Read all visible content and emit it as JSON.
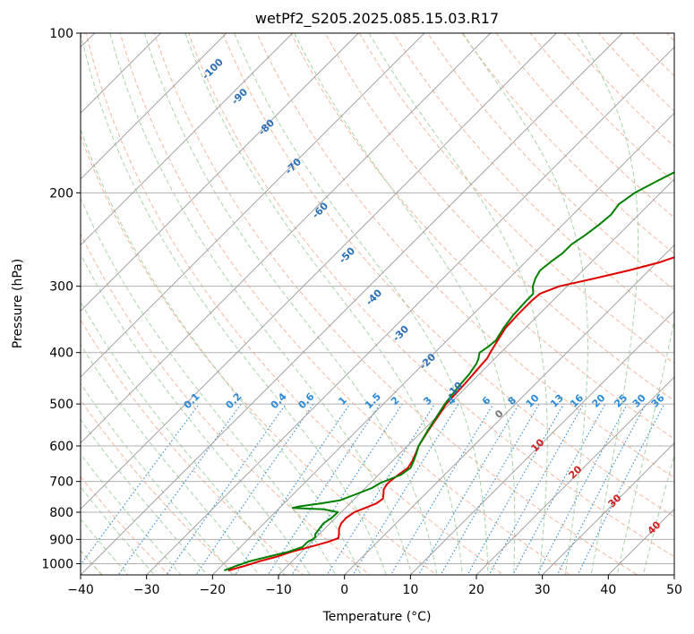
{
  "chart_data": {
    "type": "line",
    "title": "wetPf2_S205.2025.085.15.03.R17",
    "xlabel": "Temperature (°C)",
    "ylabel": "Pressure (hPa)",
    "xlim": [
      -40,
      50
    ],
    "ylim": [
      1050,
      100
    ],
    "y_scale": "log",
    "x_ticks": [
      "−40",
      "−30",
      "−20",
      "−10",
      "0",
      "10",
      "20",
      "30",
      "40",
      "50"
    ],
    "y_ticks": [
      "100",
      "200",
      "300",
      "400",
      "500",
      "600",
      "700",
      "800",
      "900",
      "1000"
    ],
    "grid": true,
    "colors": {
      "temperature": "#e00000",
      "dewpoint": "#008000",
      "dry_adiabat": "#f4a582",
      "moist_adiabat": "#8fca8f",
      "mixing_ratio": "#2a8ad8",
      "skew_isotherm": "#999999",
      "grid": "#b0b0b0",
      "iso_label_blue": "#2a6fb8",
      "iso_label_red": "#d02020",
      "zero_label": "#777777"
    },
    "series": [
      {
        "key": "temperature",
        "points": [
          [
            1030,
            -18.3
          ],
          [
            1010,
            -16.5
          ],
          [
            990,
            -15.0
          ],
          [
            970,
            -13.0
          ],
          [
            950,
            -11.5
          ],
          [
            930,
            -9.5
          ],
          [
            910,
            -7.5
          ],
          [
            895,
            -6.5
          ],
          [
            880,
            -7.0
          ],
          [
            860,
            -7.8
          ],
          [
            840,
            -8.3
          ],
          [
            820,
            -8.4
          ],
          [
            800,
            -8.0
          ],
          [
            785,
            -7.0
          ],
          [
            770,
            -6.0
          ],
          [
            755,
            -5.7
          ],
          [
            740,
            -6.3
          ],
          [
            725,
            -7.0
          ],
          [
            710,
            -7.3
          ],
          [
            700,
            -7.3
          ],
          [
            680,
            -7.0
          ],
          [
            660,
            -6.6
          ],
          [
            640,
            -7.0
          ],
          [
            620,
            -7.6
          ],
          [
            600,
            -8.3
          ],
          [
            560,
            -9.2
          ],
          [
            520,
            -10.0
          ],
          [
            500,
            -10.5
          ],
          [
            480,
            -10.6
          ],
          [
            460,
            -10.7
          ],
          [
            440,
            -10.9
          ],
          [
            420,
            -11.1
          ],
          [
            410,
            -11.2
          ],
          [
            400,
            -11.6
          ],
          [
            380,
            -12.3
          ],
          [
            360,
            -13.0
          ],
          [
            340,
            -13.2
          ],
          [
            320,
            -13.2
          ],
          [
            310,
            -13.0
          ],
          [
            300,
            -11.2
          ],
          [
            290,
            -7.0
          ],
          [
            280,
            -3.0
          ],
          [
            270,
            0.5
          ],
          [
            260,
            3.0
          ],
          [
            250,
            5.3
          ],
          [
            240,
            7.8
          ],
          [
            230,
            10.0
          ],
          [
            220,
            12.0
          ],
          [
            210,
            14.0
          ],
          [
            200,
            16.0
          ],
          [
            190,
            17.5
          ],
          [
            180,
            19.0
          ],
          [
            170,
            20.3
          ],
          [
            160,
            21.8
          ],
          [
            150,
            23.0
          ],
          [
            140,
            24.3
          ],
          [
            130,
            25.8
          ],
          [
            120,
            27.5
          ],
          [
            110,
            30.3
          ],
          [
            100,
            33.6
          ]
        ]
      },
      {
        "key": "dewpoint",
        "points": [
          [
            1030,
            -18.9
          ],
          [
            1010,
            -17.8
          ],
          [
            990,
            -16.5
          ],
          [
            970,
            -14.3
          ],
          [
            950,
            -12.0
          ],
          [
            930,
            -10.6
          ],
          [
            910,
            -10.6
          ],
          [
            900,
            -10.2
          ],
          [
            890,
            -10.2
          ],
          [
            880,
            -10.6
          ],
          [
            860,
            -10.8
          ],
          [
            840,
            -11.0
          ],
          [
            820,
            -10.6
          ],
          [
            800,
            -10.5
          ],
          [
            790,
            -13.0
          ],
          [
            785,
            -18.0
          ],
          [
            780,
            -17.2
          ],
          [
            770,
            -14.5
          ],
          [
            760,
            -12.0
          ],
          [
            740,
            -10.5
          ],
          [
            720,
            -9.0
          ],
          [
            705,
            -8.5
          ],
          [
            690,
            -7.4
          ],
          [
            680,
            -6.6
          ],
          [
            660,
            -6.2
          ],
          [
            640,
            -6.8
          ],
          [
            620,
            -7.5
          ],
          [
            600,
            -8.3
          ],
          [
            560,
            -9.3
          ],
          [
            520,
            -10.2
          ],
          [
            500,
            -10.7
          ],
          [
            480,
            -11.0
          ],
          [
            460,
            -11.3
          ],
          [
            440,
            -11.5
          ],
          [
            420,
            -12.0
          ],
          [
            410,
            -12.5
          ],
          [
            405,
            -12.9
          ],
          [
            400,
            -13.2
          ],
          [
            390,
            -12.8
          ],
          [
            380,
            -12.6
          ],
          [
            360,
            -13.3
          ],
          [
            340,
            -13.8
          ],
          [
            320,
            -14.0
          ],
          [
            310,
            -14.0
          ],
          [
            300,
            -15.2
          ],
          [
            290,
            -16.0
          ],
          [
            280,
            -16.5
          ],
          [
            270,
            -16.2
          ],
          [
            260,
            -15.7
          ],
          [
            250,
            -15.7
          ],
          [
            240,
            -15.0
          ],
          [
            230,
            -14.5
          ],
          [
            220,
            -14.2
          ],
          [
            210,
            -14.6
          ],
          [
            200,
            -13.9
          ],
          [
            190,
            -12.3
          ],
          [
            180,
            -10.5
          ],
          [
            170,
            -9.0
          ],
          [
            160,
            -7.6
          ],
          [
            150,
            -6.2
          ],
          [
            140,
            -4.6
          ],
          [
            130,
            -2.8
          ],
          [
            120,
            -1.0
          ],
          [
            110,
            0.6
          ],
          [
            100,
            1.2
          ]
        ]
      }
    ],
    "mixing_ratio_labels": [
      "0.1",
      "0.2",
      "0.4",
      "0.6",
      "1",
      "1.5",
      "2",
      "3",
      "4",
      "6",
      "8",
      "10",
      "13",
      "16",
      "20",
      "25",
      "30",
      "36"
    ],
    "mixing_ratio_values": [
      0.1,
      0.2,
      0.4,
      0.6,
      1,
      1.5,
      2,
      3,
      4,
      6,
      8,
      10,
      13,
      16,
      20,
      25,
      30,
      36
    ],
    "dry_adiabat_labels": [
      "-100",
      "-90",
      "-80",
      "-70",
      "-60",
      "-50",
      "-40",
      "-30",
      "-20",
      "-10"
    ],
    "moist_adiabat_labels": [
      "0",
      "10",
      "20",
      "30",
      "40"
    ]
  }
}
